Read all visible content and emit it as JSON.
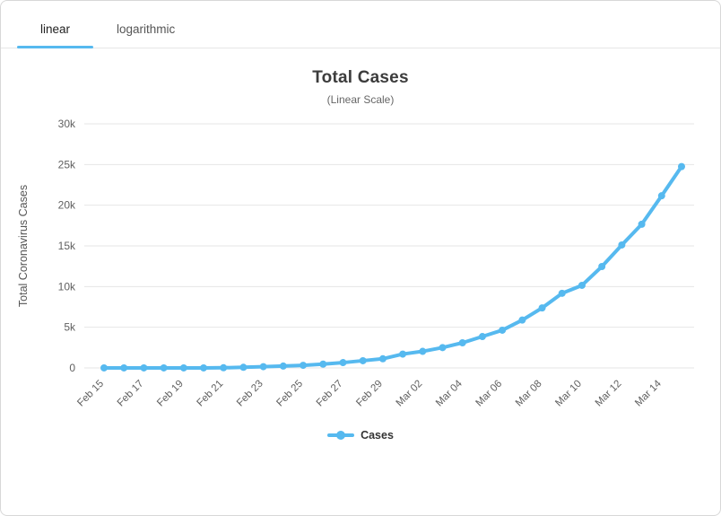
{
  "tabs": [
    {
      "label": "linear",
      "active": true
    },
    {
      "label": "logarithmic",
      "active": false
    }
  ],
  "chart_data": {
    "type": "line",
    "title": "Total Cases",
    "subtitle": "(Linear Scale)",
    "xlabel": "",
    "ylabel": "Total Coronavirus Cases",
    "legend_position": "bottom",
    "grid": true,
    "ylim": [
      0,
      30000
    ],
    "yticks": [
      0,
      5000,
      10000,
      15000,
      20000,
      25000,
      30000
    ],
    "ytick_labels": [
      "0",
      "5k",
      "10k",
      "15k",
      "20k",
      "25k",
      "30k"
    ],
    "x": [
      "Feb 15",
      "Feb 16",
      "Feb 17",
      "Feb 18",
      "Feb 19",
      "Feb 20",
      "Feb 21",
      "Feb 22",
      "Feb 23",
      "Feb 24",
      "Feb 25",
      "Feb 26",
      "Feb 27",
      "Feb 28",
      "Feb 29",
      "Mar 01",
      "Mar 02",
      "Mar 03",
      "Mar 04",
      "Mar 05",
      "Mar 06",
      "Mar 07",
      "Mar 08",
      "Mar 09",
      "Mar 10",
      "Mar 11",
      "Mar 12",
      "Mar 13",
      "Mar 14",
      "Mar 15"
    ],
    "xtick_indices": [
      0,
      2,
      4,
      6,
      8,
      10,
      12,
      14,
      16,
      18,
      20,
      22,
      24,
      26,
      28
    ],
    "series": [
      {
        "name": "Cases",
        "color": "#56b9ef",
        "values": [
          3,
          3,
          3,
          3,
          3,
          4,
          21,
          79,
          157,
          229,
          323,
          470,
          655,
          889,
          1128,
          1701,
          2036,
          2502,
          3089,
          3858,
          4636,
          5883,
          7375,
          9172,
          10149,
          12462,
          15113,
          17660,
          21157,
          24747
        ]
      }
    ],
    "colors": {
      "accent": "#56b9ef",
      "grid": "#e6e6e6",
      "tick_text": "#606060",
      "axis_label_text": "#555555"
    }
  }
}
